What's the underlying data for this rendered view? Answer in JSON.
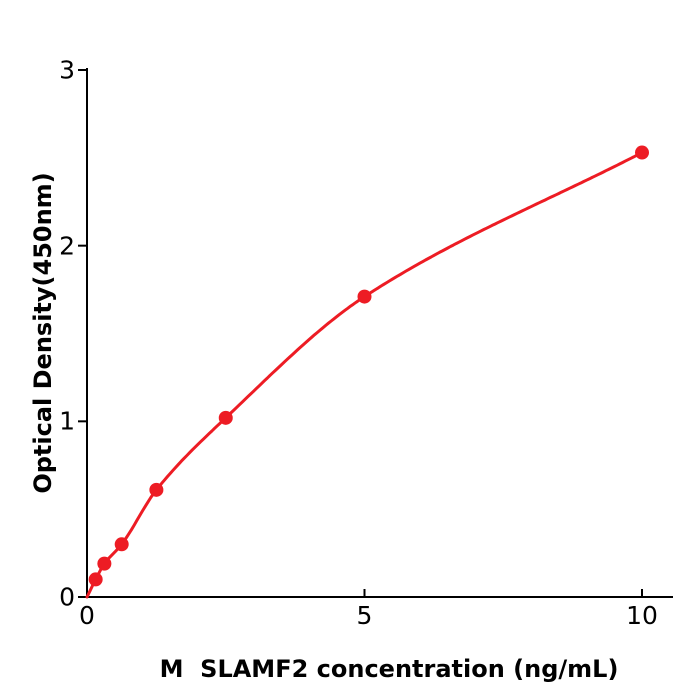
{
  "chart_data": {
    "type": "scatter",
    "title": "",
    "xlabel": "M  SLAMF2 concentration (ng/mL)",
    "ylabel": "Optical Density(450nm)",
    "x": [
      0.156,
      0.313,
      0.625,
      1.25,
      2.5,
      5,
      10
    ],
    "y": [
      0.1,
      0.19,
      0.3,
      0.61,
      1.02,
      1.71,
      2.53
    ],
    "curve_anchor": [
      0,
      0
    ],
    "curve_style": "smooth saturation fit through all points starting at origin",
    "xticks": [
      0,
      5,
      10
    ],
    "yticks": [
      0,
      1,
      2,
      3
    ],
    "xlim": [
      0,
      10.55
    ],
    "ylim": [
      0,
      3
    ],
    "grid": false,
    "legend": null,
    "line_color": "#ed1c24",
    "marker_color": "#ed1c24",
    "axis_color": "#000000",
    "background": "#ffffff"
  }
}
